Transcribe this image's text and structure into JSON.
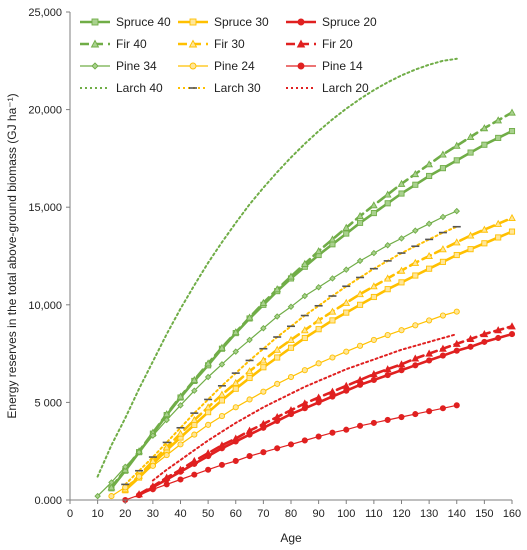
{
  "chart_data": {
    "type": "line",
    "xlabel": "Age",
    "ylabel": "Energy reserves in the total above-ground biomass (GJ ha⁻¹)",
    "xlim": [
      0,
      160
    ],
    "ylim": [
      0,
      25000
    ],
    "x_ticks": [
      "0",
      "10",
      "20",
      "30",
      "40",
      "50",
      "60",
      "70",
      "80",
      "90",
      "100",
      "110",
      "120",
      "130",
      "140",
      "150",
      "160"
    ],
    "y_ticks": [
      "0.000",
      "5 000",
      "10,000",
      "15,000",
      "20,000",
      "25,000"
    ],
    "grid": false,
    "legend": "top-left, 3 columns",
    "colors": {
      "green": "#70AD47",
      "yellow": "#FFC000",
      "red": "#E02020",
      "marker_fill_green": "#A9D18E",
      "marker_fill_yellow": "#FFE699",
      "marker_fill_red": "#E02020"
    },
    "series": [
      {
        "name": "Spruce 40",
        "color": "green",
        "style": "solid-thick",
        "marker": "square",
        "x": [
          15,
          20,
          25,
          30,
          35,
          40,
          45,
          50,
          55,
          60,
          65,
          70,
          75,
          80,
          85,
          90,
          95,
          100,
          105,
          110,
          115,
          120,
          125,
          130,
          135,
          140,
          145,
          150,
          155,
          160
        ],
        "y": [
          600,
          1500,
          2450,
          3400,
          4350,
          5250,
          6100,
          6900,
          7750,
          8550,
          9300,
          10000,
          10700,
          11350,
          11950,
          12550,
          13100,
          13650,
          14200,
          14700,
          15200,
          15700,
          16150,
          16600,
          17000,
          17400,
          17800,
          18200,
          18550,
          18900
        ]
      },
      {
        "name": "Spruce 30",
        "color": "yellow",
        "style": "solid-thick",
        "marker": "square",
        "x": [
          20,
          25,
          30,
          35,
          40,
          45,
          50,
          55,
          60,
          65,
          70,
          75,
          80,
          85,
          90,
          95,
          100,
          105,
          110,
          115,
          120,
          125,
          130,
          135,
          140,
          145,
          150,
          155,
          160
        ],
        "y": [
          500,
          1150,
          1850,
          2550,
          3200,
          3850,
          4500,
          5100,
          5700,
          6250,
          6800,
          7300,
          7800,
          8300,
          8750,
          9200,
          9600,
          10000,
          10400,
          10800,
          11150,
          11500,
          11850,
          12200,
          12550,
          12850,
          13150,
          13450,
          13750
        ]
      },
      {
        "name": "Spruce 20",
        "color": "red",
        "style": "solid-thick",
        "marker": "circle",
        "x": [
          25,
          30,
          35,
          40,
          45,
          50,
          55,
          60,
          65,
          70,
          75,
          80,
          85,
          90,
          95,
          100,
          105,
          110,
          115,
          120,
          125,
          130,
          135,
          140,
          145,
          150,
          155,
          160
        ],
        "y": [
          250,
          650,
          1050,
          1450,
          1850,
          2250,
          2650,
          3000,
          3350,
          3700,
          4050,
          4400,
          4700,
          5000,
          5300,
          5600,
          5900,
          6150,
          6400,
          6650,
          6900,
          7150,
          7400,
          7650,
          7850,
          8100,
          8300,
          8500
        ]
      },
      {
        "name": "Fir 40",
        "color": "green",
        "style": "dashed-thick",
        "marker": "triangle",
        "x": [
          15,
          20,
          25,
          30,
          35,
          40,
          45,
          50,
          55,
          60,
          65,
          70,
          75,
          80,
          85,
          90,
          95,
          100,
          105,
          110,
          115,
          120,
          125,
          130,
          135,
          140,
          145,
          150,
          155,
          160
        ],
        "y": [
          650,
          1550,
          2500,
          3450,
          4400,
          5300,
          6150,
          7000,
          7800,
          8600,
          9350,
          10100,
          10800,
          11450,
          12100,
          12750,
          13350,
          13950,
          14550,
          15100,
          15650,
          16200,
          16700,
          17200,
          17700,
          18150,
          18600,
          19050,
          19450,
          19850
        ]
      },
      {
        "name": "Fir 30",
        "color": "yellow",
        "style": "dashed-thick",
        "marker": "triangle",
        "x": [
          20,
          25,
          30,
          35,
          40,
          45,
          50,
          55,
          60,
          65,
          70,
          75,
          80,
          85,
          90,
          95,
          100,
          105,
          110,
          115,
          120,
          125,
          130,
          135,
          140,
          145,
          150,
          155,
          160
        ],
        "y": [
          550,
          1250,
          2000,
          2700,
          3400,
          4100,
          4750,
          5400,
          6000,
          6600,
          7150,
          7700,
          8200,
          8700,
          9200,
          9650,
          10100,
          10550,
          10950,
          11350,
          11750,
          12150,
          12500,
          12850,
          13200,
          13550,
          13850,
          14150,
          14450
        ]
      },
      {
        "name": "Fir 20",
        "color": "red",
        "style": "dashed-thick",
        "marker": "triangle",
        "x": [
          25,
          30,
          35,
          40,
          45,
          50,
          55,
          60,
          65,
          70,
          75,
          80,
          85,
          90,
          95,
          100,
          105,
          110,
          115,
          120,
          125,
          130,
          135,
          140,
          145,
          150,
          155,
          160
        ],
        "y": [
          300,
          700,
          1150,
          1550,
          2000,
          2400,
          2800,
          3150,
          3550,
          3900,
          4250,
          4600,
          4950,
          5250,
          5550,
          5850,
          6150,
          6450,
          6700,
          6950,
          7250,
          7500,
          7750,
          8000,
          8250,
          8500,
          8700,
          8900
        ]
      },
      {
        "name": "Pine 34",
        "color": "green",
        "style": "solid-thin",
        "marker": "diamond",
        "x": [
          10,
          15,
          20,
          25,
          30,
          35,
          40,
          45,
          50,
          55,
          60,
          65,
          70,
          75,
          80,
          85,
          90,
          95,
          100,
          105,
          110,
          115,
          120,
          125,
          130,
          135,
          140
        ],
        "y": [
          200,
          900,
          1700,
          2450,
          3300,
          4100,
          4850,
          5600,
          6300,
          6950,
          7600,
          8200,
          8800,
          9400,
          9900,
          10450,
          10900,
          11350,
          11800,
          12250,
          12650,
          13050,
          13400,
          13800,
          14150,
          14500,
          14800
        ]
      },
      {
        "name": "Pine 24",
        "color": "yellow",
        "style": "solid-thin",
        "marker": "circle",
        "x": [
          15,
          20,
          25,
          30,
          35,
          40,
          45,
          50,
          55,
          60,
          65,
          70,
          75,
          80,
          85,
          90,
          95,
          100,
          105,
          110,
          115,
          120,
          125,
          130,
          135,
          140
        ],
        "y": [
          200,
          650,
          1200,
          1750,
          2300,
          2850,
          3350,
          3850,
          4300,
          4750,
          5150,
          5550,
          5950,
          6300,
          6650,
          7000,
          7300,
          7600,
          7900,
          8200,
          8450,
          8700,
          8950,
          9200,
          9450,
          9650
        ]
      },
      {
        "name": "Pine 14",
        "color": "red",
        "style": "solid-thin",
        "marker": "circle",
        "x": [
          20,
          25,
          30,
          35,
          40,
          45,
          50,
          55,
          60,
          65,
          70,
          75,
          80,
          85,
          90,
          95,
          100,
          105,
          110,
          115,
          120,
          125,
          130,
          135,
          140
        ],
        "y": [
          0,
          250,
          550,
          800,
          1050,
          1300,
          1550,
          1800,
          2000,
          2250,
          2450,
          2650,
          2850,
          3050,
          3250,
          3450,
          3600,
          3800,
          3950,
          4100,
          4250,
          4400,
          4550,
          4700,
          4850
        ]
      },
      {
        "name": "Larch 40",
        "color": "green",
        "style": "dotted",
        "marker": "none",
        "x": [
          10,
          15,
          20,
          25,
          30,
          35,
          40,
          45,
          50,
          55,
          60,
          65,
          70,
          75,
          80,
          85,
          90,
          95,
          100,
          105,
          110,
          115,
          120,
          125,
          130,
          135,
          140
        ],
        "y": [
          1200,
          2800,
          4200,
          5700,
          7100,
          8500,
          9800,
          11000,
          12150,
          13200,
          14200,
          15150,
          16000,
          16800,
          17550,
          18250,
          18900,
          19500,
          20050,
          20550,
          21000,
          21400,
          21750,
          22050,
          22300,
          22500,
          22600
        ]
      },
      {
        "name": "Larch 30",
        "color": "yellow",
        "style": "dotted",
        "marker": "dash",
        "x": [
          20,
          25,
          30,
          35,
          40,
          45,
          50,
          55,
          60,
          65,
          70,
          75,
          80,
          85,
          90,
          95,
          100,
          105,
          110,
          115,
          120,
          125,
          130,
          135,
          140
        ],
        "y": [
          800,
          1500,
          2200,
          2950,
          3700,
          4450,
          5150,
          5850,
          6500,
          7150,
          7750,
          8350,
          8900,
          9450,
          9950,
          10450,
          10950,
          11400,
          11850,
          12250,
          12650,
          13000,
          13350,
          13700,
          14000
        ]
      },
      {
        "name": "Larch 20",
        "color": "red",
        "style": "dotted",
        "marker": "none",
        "x": [
          30,
          35,
          40,
          45,
          50,
          55,
          60,
          65,
          70,
          75,
          80,
          85,
          90,
          95,
          100,
          105,
          110,
          115,
          120,
          125,
          130,
          135,
          140
        ],
        "y": [
          1000,
          1550,
          2050,
          2550,
          3050,
          3500,
          3950,
          4350,
          4750,
          5100,
          5450,
          5800,
          6100,
          6400,
          6700,
          6950,
          7200,
          7450,
          7700,
          7900,
          8100,
          8300,
          8500
        ]
      }
    ]
  }
}
